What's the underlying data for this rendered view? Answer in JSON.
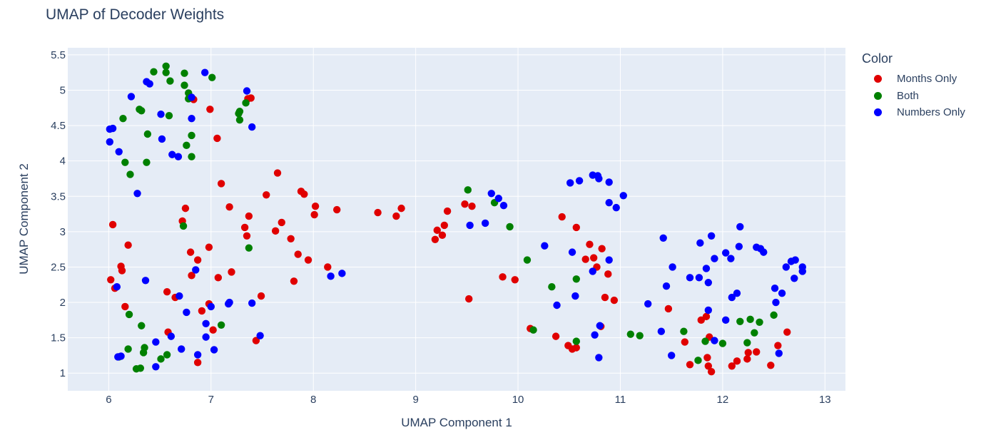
{
  "chart_data": {
    "type": "scatter",
    "title": "UMAP of Decoder Weights",
    "xlabel": "UMAP Component 1",
    "ylabel": "UMAP Component 2",
    "xlim": [
      5.6,
      13.2
    ],
    "ylim": [
      0.75,
      5.6
    ],
    "xticks": [
      6,
      7,
      8,
      9,
      10,
      11,
      12,
      13
    ],
    "yticks": [
      1,
      1.5,
      2,
      2.5,
      3,
      3.5,
      4,
      4.5,
      5,
      5.5
    ],
    "grid": true,
    "legend_title": "Color",
    "legend_position": "right",
    "series": [
      {
        "name": "Months Only",
        "color": "#e00000",
        "points": [
          [
            6.83,
            4.87
          ],
          [
            6.99,
            4.73
          ],
          [
            7.36,
            4.88
          ],
          [
            7.39,
            4.89
          ],
          [
            7.06,
            4.32
          ],
          [
            6.04,
            3.1
          ],
          [
            6.75,
            3.33
          ],
          [
            6.72,
            3.15
          ],
          [
            6.12,
            2.51
          ],
          [
            6.13,
            2.45
          ],
          [
            6.19,
            2.81
          ],
          [
            6.02,
            2.32
          ],
          [
            6.06,
            2.2
          ],
          [
            6.8,
            2.71
          ],
          [
            6.87,
            2.6
          ],
          [
            6.98,
            2.78
          ],
          [
            6.81,
            2.38
          ],
          [
            6.16,
            1.94
          ],
          [
            6.57,
            2.15
          ],
          [
            6.65,
            2.07
          ],
          [
            6.91,
            1.88
          ],
          [
            6.98,
            1.98
          ],
          [
            7.02,
            1.61
          ],
          [
            6.58,
            1.58
          ],
          [
            6.87,
            1.15
          ],
          [
            7.07,
            2.35
          ],
          [
            7.1,
            3.68
          ],
          [
            7.18,
            3.35
          ],
          [
            7.2,
            2.43
          ],
          [
            7.33,
            3.06
          ],
          [
            7.35,
            2.94
          ],
          [
            7.37,
            3.22
          ],
          [
            7.44,
            1.46
          ],
          [
            7.49,
            2.09
          ],
          [
            7.54,
            3.52
          ],
          [
            7.63,
            3.01
          ],
          [
            7.65,
            3.83
          ],
          [
            7.69,
            3.13
          ],
          [
            7.78,
            2.9
          ],
          [
            7.81,
            2.3
          ],
          [
            7.85,
            2.68
          ],
          [
            7.88,
            3.57
          ],
          [
            7.91,
            3.53
          ],
          [
            7.95,
            2.6
          ],
          [
            8.01,
            3.24
          ],
          [
            8.02,
            3.36
          ],
          [
            8.14,
            2.5
          ],
          [
            8.23,
            3.31
          ],
          [
            8.63,
            3.27
          ],
          [
            8.81,
            3.22
          ],
          [
            8.86,
            3.33
          ],
          [
            9.19,
            2.89
          ],
          [
            9.21,
            3.02
          ],
          [
            9.26,
            2.95
          ],
          [
            9.28,
            3.09
          ],
          [
            9.31,
            3.29
          ],
          [
            9.48,
            3.39
          ],
          [
            9.55,
            3.36
          ],
          [
            9.52,
            2.05
          ],
          [
            9.85,
            2.36
          ],
          [
            9.97,
            2.32
          ],
          [
            10.12,
            1.63
          ],
          [
            10.37,
            1.52
          ],
          [
            10.43,
            3.21
          ],
          [
            10.49,
            1.39
          ],
          [
            10.53,
            1.34
          ],
          [
            10.57,
            1.36
          ],
          [
            10.57,
            3.06
          ],
          [
            10.66,
            2.61
          ],
          [
            10.7,
            2.82
          ],
          [
            10.74,
            2.63
          ],
          [
            10.77,
            2.5
          ],
          [
            10.81,
            1.66
          ],
          [
            10.82,
            2.76
          ],
          [
            10.85,
            2.07
          ],
          [
            10.88,
            2.4
          ],
          [
            10.94,
            2.03
          ],
          [
            11.47,
            1.91
          ],
          [
            11.63,
            1.44
          ],
          [
            11.68,
            1.12
          ],
          [
            11.79,
            1.75
          ],
          [
            11.84,
            1.8
          ],
          [
            11.85,
            1.22
          ],
          [
            11.86,
            1.1
          ],
          [
            11.87,
            1.51
          ],
          [
            11.89,
            1.02
          ],
          [
            12.09,
            1.1
          ],
          [
            12.14,
            1.17
          ],
          [
            12.24,
            1.2
          ],
          [
            12.25,
            1.29
          ],
          [
            12.33,
            1.3
          ],
          [
            12.47,
            1.11
          ],
          [
            12.54,
            1.39
          ],
          [
            12.63,
            1.58
          ]
        ]
      },
      {
        "name": "Both",
        "color": "#008000",
        "points": [
          [
            6.56,
            5.34
          ],
          [
            6.44,
            5.26
          ],
          [
            6.56,
            5.25
          ],
          [
            6.74,
            5.24
          ],
          [
            6.6,
            5.13
          ],
          [
            7.01,
            5.18
          ],
          [
            6.74,
            5.07
          ],
          [
            6.78,
            4.96
          ],
          [
            6.78,
            4.88
          ],
          [
            7.34,
            4.82
          ],
          [
            6.3,
            4.73
          ],
          [
            6.32,
            4.71
          ],
          [
            7.27,
            4.67
          ],
          [
            7.28,
            4.7
          ],
          [
            7.28,
            4.58
          ],
          [
            6.14,
            4.6
          ],
          [
            6.59,
            4.64
          ],
          [
            6.38,
            4.38
          ],
          [
            6.81,
            4.36
          ],
          [
            6.76,
            4.22
          ],
          [
            6.81,
            4.06
          ],
          [
            6.16,
            3.98
          ],
          [
            6.37,
            3.98
          ],
          [
            6.21,
            3.81
          ],
          [
            6.73,
            3.08
          ],
          [
            7.37,
            2.77
          ],
          [
            6.2,
            1.83
          ],
          [
            6.32,
            1.67
          ],
          [
            7.1,
            1.68
          ],
          [
            6.19,
            1.34
          ],
          [
            6.35,
            1.36
          ],
          [
            6.34,
            1.29
          ],
          [
            6.1,
            1.23
          ],
          [
            6.51,
            1.2
          ],
          [
            6.57,
            1.26
          ],
          [
            6.27,
            1.06
          ],
          [
            6.31,
            1.07
          ],
          [
            9.51,
            3.59
          ],
          [
            9.77,
            3.41
          ],
          [
            9.92,
            3.07
          ],
          [
            10.09,
            2.6
          ],
          [
            10.33,
            2.22
          ],
          [
            10.15,
            1.61
          ],
          [
            10.57,
            2.33
          ],
          [
            10.57,
            1.45
          ],
          [
            11.1,
            1.55
          ],
          [
            11.19,
            1.53
          ],
          [
            11.62,
            1.59
          ],
          [
            11.76,
            1.18
          ],
          [
            11.83,
            1.45
          ],
          [
            12.0,
            1.42
          ],
          [
            12.17,
            1.73
          ],
          [
            12.24,
            1.43
          ],
          [
            12.27,
            1.76
          ],
          [
            12.31,
            1.57
          ],
          [
            12.36,
            1.72
          ],
          [
            12.5,
            1.82
          ]
        ]
      },
      {
        "name": "Numbers Only",
        "color": "#0000ff",
        "points": [
          [
            6.94,
            5.25
          ],
          [
            6.37,
            5.12
          ],
          [
            6.4,
            5.09
          ],
          [
            7.35,
            4.99
          ],
          [
            6.22,
            4.91
          ],
          [
            6.81,
            4.9
          ],
          [
            6.51,
            4.66
          ],
          [
            6.81,
            4.6
          ],
          [
            6.04,
            4.46
          ],
          [
            6.01,
            4.45
          ],
          [
            7.4,
            4.48
          ],
          [
            6.52,
            4.31
          ],
          [
            6.01,
            4.27
          ],
          [
            6.1,
            4.13
          ],
          [
            6.62,
            4.09
          ],
          [
            6.68,
            4.06
          ],
          [
            6.28,
            3.54
          ],
          [
            6.36,
            2.31
          ],
          [
            6.85,
            2.46
          ],
          [
            6.08,
            2.22
          ],
          [
            6.69,
            2.09
          ],
          [
            6.76,
            1.86
          ],
          [
            7.0,
            1.94
          ],
          [
            6.95,
            1.7
          ],
          [
            7.17,
            1.98
          ],
          [
            7.18,
            2.0
          ],
          [
            7.4,
            1.99
          ],
          [
            6.61,
            1.52
          ],
          [
            6.95,
            1.51
          ],
          [
            6.46,
            1.44
          ],
          [
            6.71,
            1.34
          ],
          [
            7.03,
            1.33
          ],
          [
            6.87,
            1.26
          ],
          [
            6.09,
            1.23
          ],
          [
            6.12,
            1.24
          ],
          [
            6.46,
            1.09
          ],
          [
            7.48,
            1.53
          ],
          [
            8.17,
            2.37
          ],
          [
            8.28,
            2.41
          ],
          [
            9.53,
            3.09
          ],
          [
            9.68,
            3.12
          ],
          [
            9.74,
            3.54
          ],
          [
            9.81,
            3.47
          ],
          [
            9.86,
            3.37
          ],
          [
            10.26,
            2.8
          ],
          [
            10.38,
            1.96
          ],
          [
            10.51,
            3.69
          ],
          [
            10.6,
            3.72
          ],
          [
            10.53,
            2.71
          ],
          [
            10.56,
            2.09
          ],
          [
            10.73,
            3.8
          ],
          [
            10.78,
            3.79
          ],
          [
            10.79,
            3.75
          ],
          [
            10.89,
            3.7
          ],
          [
            10.89,
            3.41
          ],
          [
            10.96,
            3.34
          ],
          [
            11.03,
            3.51
          ],
          [
            10.73,
            2.44
          ],
          [
            10.89,
            2.6
          ],
          [
            10.75,
            1.54
          ],
          [
            10.8,
            1.67
          ],
          [
            10.79,
            1.22
          ],
          [
            11.27,
            1.98
          ],
          [
            11.42,
            2.91
          ],
          [
            11.45,
            2.23
          ],
          [
            11.51,
            2.5
          ],
          [
            11.4,
            1.59
          ],
          [
            11.5,
            1.25
          ],
          [
            11.68,
            2.35
          ],
          [
            11.77,
            2.35
          ],
          [
            11.78,
            2.84
          ],
          [
            11.84,
            2.48
          ],
          [
            11.86,
            2.28
          ],
          [
            11.86,
            1.89
          ],
          [
            11.89,
            2.94
          ],
          [
            11.92,
            2.62
          ],
          [
            11.92,
            1.46
          ],
          [
            12.03,
            2.7
          ],
          [
            12.08,
            2.62
          ],
          [
            12.09,
            2.07
          ],
          [
            12.14,
            2.13
          ],
          [
            12.17,
            3.07
          ],
          [
            12.16,
            2.79
          ],
          [
            12.03,
            1.75
          ],
          [
            12.33,
            2.78
          ],
          [
            12.37,
            2.76
          ],
          [
            12.4,
            2.71
          ],
          [
            12.51,
            2.2
          ],
          [
            12.52,
            2.0
          ],
          [
            12.58,
            2.13
          ],
          [
            12.55,
            1.28
          ],
          [
            12.62,
            2.5
          ],
          [
            12.67,
            2.58
          ],
          [
            12.71,
            2.6
          ],
          [
            12.7,
            2.34
          ],
          [
            12.78,
            2.5
          ],
          [
            12.78,
            2.44
          ]
        ]
      }
    ]
  }
}
